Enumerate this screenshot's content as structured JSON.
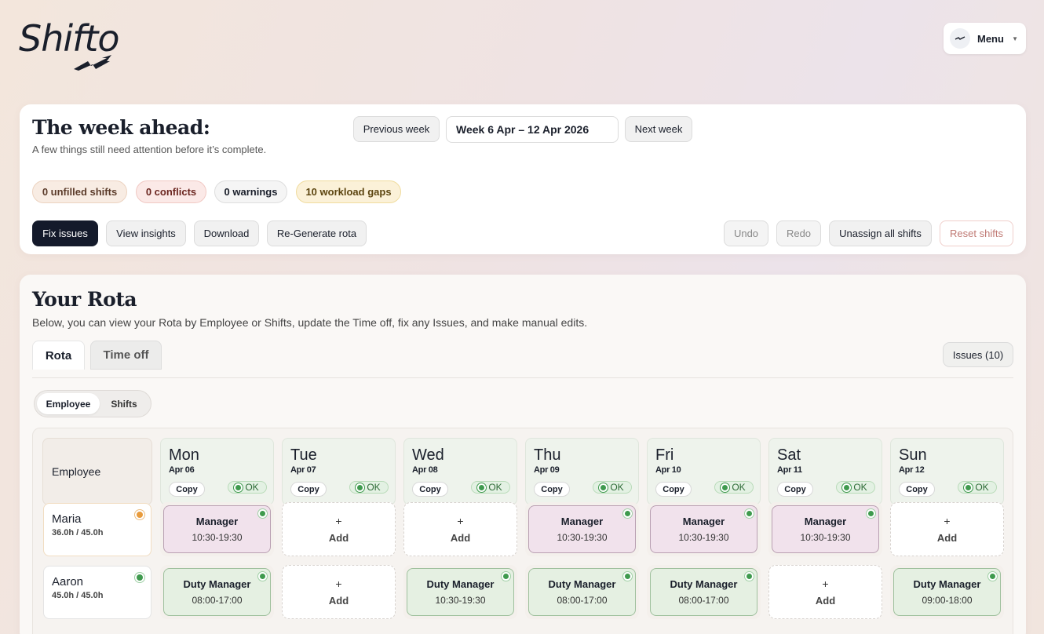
{
  "app": {
    "logo_text": "Shifto"
  },
  "header": {
    "menu_label": "Menu"
  },
  "week_card": {
    "title": "The week ahead:",
    "subtitle": "A few things still need attention before it’s complete.",
    "prev_week": "Previous week",
    "week_range": "Week 6 Apr – 12 Apr 2026",
    "next_week": "Next week",
    "pills": {
      "unfilled": "0 unfilled shifts",
      "conflicts": "0 conflicts",
      "warnings": "0 warnings",
      "gaps": "10 workload gaps"
    },
    "actions": {
      "fix_issues": "Fix issues",
      "view_insights": "View insights",
      "download": "Download",
      "regenerate": "Re-Generate rota",
      "undo": "Undo",
      "redo": "Redo",
      "unassign_all": "Unassign all shifts",
      "reset_shifts": "Reset shifts"
    }
  },
  "rota": {
    "title": "Your Rota",
    "subtitle": "Below, you can view your Rota by Employee or Shifts, update the Time off, fix any Issues, and make manual edits.",
    "tabs": {
      "rota": "Rota",
      "time_off": "Time off"
    },
    "issues_button": "Issues (10)",
    "view_toggle": {
      "employee": "Employee",
      "shifts": "Shifts"
    },
    "grid": {
      "employee_header": "Employee",
      "copy_label": "Copy",
      "ok_label": "OK",
      "add_label": "Add",
      "add_plus": "+",
      "days": [
        {
          "name": "Mon",
          "date": "Apr 06"
        },
        {
          "name": "Tue",
          "date": "Apr 07"
        },
        {
          "name": "Wed",
          "date": "Apr 08"
        },
        {
          "name": "Thu",
          "date": "Apr 09"
        },
        {
          "name": "Fri",
          "date": "Apr 10"
        },
        {
          "name": "Sat",
          "date": "Apr 11"
        },
        {
          "name": "Sun",
          "date": "Apr 12"
        }
      ],
      "employees": [
        {
          "name": "Maria",
          "hours": "36.0h / 45.0h",
          "status": "warning",
          "shifts": [
            {
              "role": "Manager",
              "time": "10:30-19:30"
            },
            null,
            null,
            {
              "role": "Manager",
              "time": "10:30-19:30"
            },
            {
              "role": "Manager",
              "time": "10:30-19:30"
            },
            {
              "role": "Manager",
              "time": "10:30-19:30"
            },
            null
          ]
        },
        {
          "name": "Aaron",
          "hours": "45.0h / 45.0h",
          "status": "ok",
          "shifts": [
            {
              "role": "Duty Manager",
              "time": "08:00-17:00"
            },
            null,
            {
              "role": "Duty Manager",
              "time": "10:30-19:30"
            },
            {
              "role": "Duty Manager",
              "time": "08:00-17:00"
            },
            {
              "role": "Duty Manager",
              "time": "08:00-17:00"
            },
            null,
            {
              "role": "Duty Manager",
              "time": "09:00-18:00"
            }
          ]
        }
      ]
    }
  },
  "colors": {
    "primary_dark": "#141a2b",
    "manager_shift": "#f1e2ec",
    "duty_manager_shift": "#e5f0e2",
    "ok_green": "#3f9a4e",
    "warning_orange": "#e89b3c"
  }
}
